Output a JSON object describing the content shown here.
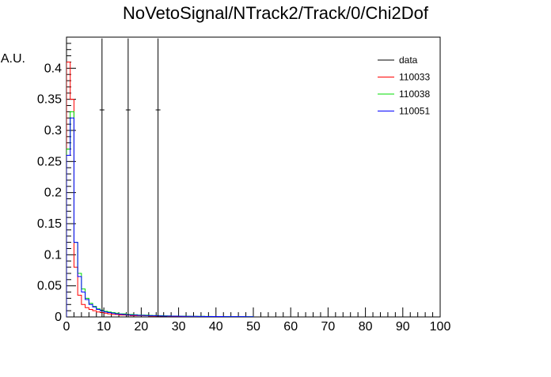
{
  "chart_data": {
    "type": "histogram",
    "title": "NoVetoSignal/NTrack2/Track/0/Chi2Dof",
    "xlabel": "",
    "ylabel": "A.U.",
    "xlim": [
      0,
      100
    ],
    "ylim": [
      0,
      0.45
    ],
    "grid": false,
    "legend_position": "top-right",
    "x_ticks": [
      0,
      10,
      20,
      30,
      40,
      50,
      60,
      70,
      80,
      90,
      100
    ],
    "y_ticks": [
      0,
      0.05,
      0.1,
      0.15,
      0.2,
      0.25,
      0.3,
      0.35,
      0.4
    ],
    "x_tick_labels": [
      "0",
      "10",
      "20",
      "30",
      "40",
      "50",
      "60",
      "70",
      "80",
      "90",
      "100"
    ],
    "y_tick_labels": [
      "0",
      "0.05",
      "0.1",
      "0.15",
      "0.2",
      "0.25",
      "0.3",
      "0.35",
      "0.4"
    ],
    "bin_width": 1,
    "series": [
      {
        "name": "data",
        "color": "#000000",
        "style": "points",
        "points": [
          {
            "x": 9.5,
            "y": 0.333,
            "y_top": 0.448
          },
          {
            "x": 16.5,
            "y": 0.333,
            "y_top": 0.448
          },
          {
            "x": 24.5,
            "y": 0.333,
            "y_top": 0.448
          }
        ]
      },
      {
        "name": "110033",
        "color": "#ff0000",
        "style": "step",
        "values": [
          0.41,
          0.35,
          0.08,
          0.035,
          0.02,
          0.015,
          0.012,
          0.01,
          0.008,
          0.007,
          0.006,
          0.005,
          0.004,
          0.004,
          0.003,
          0.003,
          0.003,
          0.002,
          0.002,
          0.002,
          0.002,
          0.002,
          0.0015,
          0.0015,
          0.0015,
          0.0012,
          0.0012,
          0.001,
          0.001,
          0.001,
          0.001,
          0.0008,
          0.0008,
          0.0008,
          0.0007,
          0.0007,
          0.0006,
          0.0006,
          0.0006,
          0.0005,
          0.0005,
          0.0005,
          0.0004,
          0.0004,
          0.0004,
          0.0004,
          0.0003,
          0.0003,
          0.0003,
          0.0003
        ]
      },
      {
        "name": "110038",
        "color": "#00dd00",
        "style": "step",
        "values": [
          0.27,
          0.33,
          0.12,
          0.07,
          0.045,
          0.03,
          0.022,
          0.017,
          0.013,
          0.011,
          0.009,
          0.008,
          0.007,
          0.006,
          0.005,
          0.005,
          0.004,
          0.004,
          0.0035,
          0.003,
          0.003,
          0.0028,
          0.0025,
          0.0023,
          0.002,
          0.002,
          0.0018,
          0.0016,
          0.0015,
          0.0014,
          0.0013,
          0.0012,
          0.0011,
          0.001,
          0.001,
          0.0009,
          0.0009,
          0.0008,
          0.0008,
          0.0007,
          0.0007,
          0.0006,
          0.0006,
          0.0006,
          0.0005,
          0.0005,
          0.0005,
          0.0004,
          0.0004,
          0.0004
        ]
      },
      {
        "name": "110051",
        "color": "#0000ff",
        "style": "step",
        "values": [
          0.26,
          0.32,
          0.12,
          0.065,
          0.04,
          0.028,
          0.02,
          0.016,
          0.012,
          0.01,
          0.008,
          0.007,
          0.006,
          0.005,
          0.0045,
          0.004,
          0.0035,
          0.003,
          0.003,
          0.0025,
          0.0025,
          0.0022,
          0.002,
          0.002,
          0.0018,
          0.0016,
          0.0015,
          0.0014,
          0.0013,
          0.0012,
          0.0011,
          0.001,
          0.001,
          0.0009,
          0.0009,
          0.0008,
          0.0008,
          0.0007,
          0.0007,
          0.0006,
          0.0006,
          0.0006,
          0.0005,
          0.0005,
          0.0005,
          0.0004,
          0.0004,
          0.0004,
          0.0003,
          0.0003
        ]
      }
    ]
  }
}
